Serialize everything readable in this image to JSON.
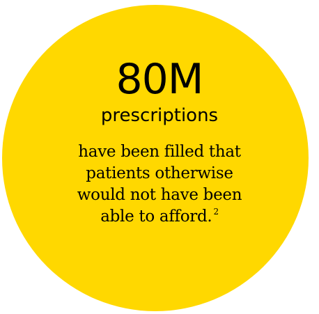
{
  "stat": {
    "number": "80M",
    "unit": "prescriptions",
    "description_lines": [
      "have been filled that",
      "patients otherwise",
      "would not have been",
      "able to afford."
    ],
    "footnote": "2"
  },
  "colors": {
    "circle": "#ffd800",
    "text": "#1f1f1f",
    "background": "#ffffff"
  }
}
